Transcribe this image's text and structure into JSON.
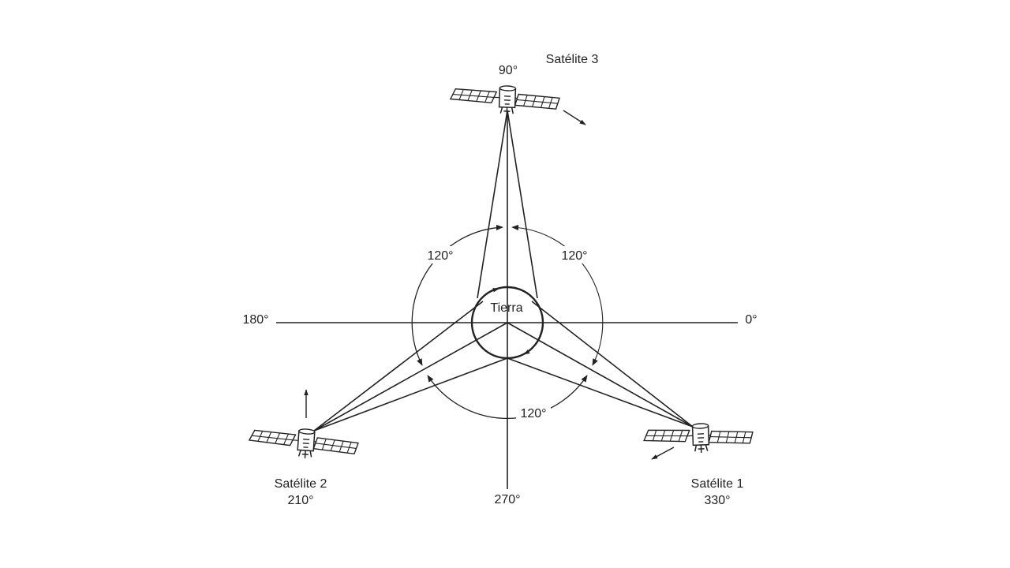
{
  "earth": {
    "label": "Tierra"
  },
  "axis_labels": {
    "east": "0°",
    "north": "90°",
    "west": "180°",
    "south": "270°"
  },
  "separation_labels": {
    "upper_left": "120°",
    "upper_right": "120°",
    "bottom": "120°"
  },
  "satellites": [
    {
      "name": "Satélite 1",
      "angle": "330°"
    },
    {
      "name": "Satélite 2",
      "angle": "210°"
    },
    {
      "name": "Satélite 3",
      "angle": "90°"
    }
  ],
  "colors": {
    "ink": "#222222",
    "background": "#ffffff"
  },
  "icons": {
    "satellite": "satellite-icon",
    "motion": "motion-arrow-icon"
  }
}
